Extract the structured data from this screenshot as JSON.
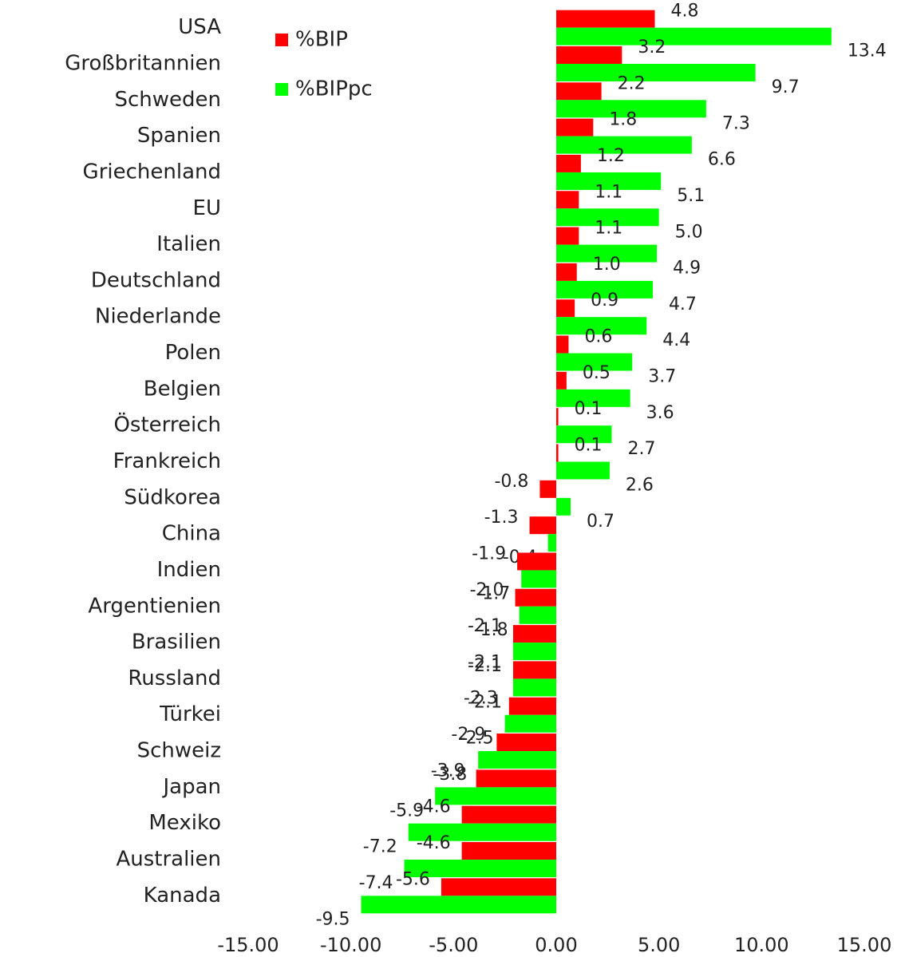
{
  "chart_data": {
    "type": "hbar",
    "categories": [
      "USA",
      "Großbritannien",
      "Schweden",
      "Spanien",
      "Griechenland",
      "EU",
      "Italien",
      "Deutschland",
      "Niederlande",
      "Polen",
      "Belgien",
      "Österreich",
      "Frankreich",
      "Südkorea",
      "China",
      "Indien",
      "Argentienien",
      "Brasilien",
      "Russland",
      "Türkei",
      "Schweiz",
      "Japan",
      "Mexiko",
      "Australien",
      "Kanada"
    ],
    "series": [
      {
        "name": "%BIP",
        "color": "#ff0000",
        "values": [
          4.8,
          3.2,
          2.2,
          1.8,
          1.2,
          1.1,
          1.1,
          1.0,
          0.9,
          0.6,
          0.5,
          0.1,
          0.1,
          -0.8,
          -1.3,
          -1.9,
          -2.0,
          -2.1,
          -2.1,
          -2.3,
          -2.9,
          -3.9,
          -4.6,
          -4.6,
          -5.6
        ],
        "value_labels": [
          "4.8",
          "3.2",
          "2.2",
          "1.8",
          "1.2",
          "1.1",
          "1.1",
          "1.0",
          "0.9",
          "0.6",
          "0.5",
          "0.1",
          "0.1",
          "-0.8",
          "-1.3",
          "-1.9",
          "-2.0",
          "-2.1",
          "-2.1",
          "-2.3",
          "-2.9",
          "-3.9",
          "-4.6",
          "-4.6",
          "-5.6"
        ]
      },
      {
        "name": "%BIPpc",
        "color": "#00ff00",
        "values": [
          13.4,
          9.7,
          7.3,
          6.6,
          5.1,
          5.0,
          4.9,
          4.7,
          4.4,
          3.7,
          3.6,
          2.7,
          2.6,
          0.7,
          -0.4,
          -1.7,
          -1.8,
          -2.1,
          -2.1,
          -2.5,
          -3.8,
          -5.9,
          -7.2,
          -7.4,
          -9.5
        ],
        "value_labels": [
          "13.4",
          "9.7",
          "7.3",
          "6.6",
          "5.1",
          "5.0",
          "4.9",
          "4.7",
          "4.4",
          "3.7",
          "3.6",
          "2.7",
          "2.6",
          "0.7",
          "-0.4",
          "-1.7",
          "-1.8",
          "-2.1",
          "-2.1",
          "-2.5",
          "-3.8",
          "-5.9",
          "-7.2",
          "-7.4",
          "-9.5"
        ]
      }
    ],
    "xlim": [
      -15,
      15
    ],
    "xticks": [
      {
        "value": -15,
        "label": "-15.00"
      },
      {
        "value": -10,
        "label": "-10.00"
      },
      {
        "value": -5,
        "label": "-5.00"
      },
      {
        "value": 0,
        "label": "0.00"
      },
      {
        "value": 5,
        "label": "5.00"
      },
      {
        "value": 10,
        "label": "10.00"
      },
      {
        "value": 15,
        "label": "15.00"
      }
    ],
    "legend": "upper-left"
  }
}
